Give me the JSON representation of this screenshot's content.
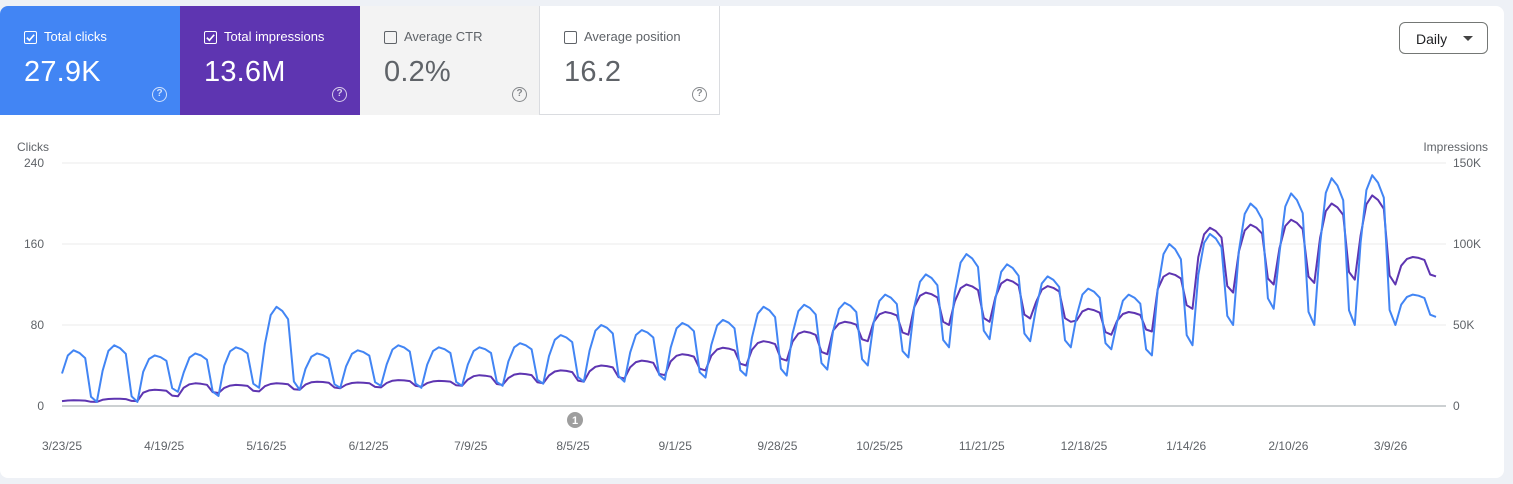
{
  "metrics": [
    {
      "label": "Total clicks",
      "value": "27.9K",
      "checked": true,
      "color": "#4285f4"
    },
    {
      "label": "Total impressions",
      "value": "13.6M",
      "checked": true,
      "color": "#5e35b1"
    },
    {
      "label": "Average CTR",
      "value": "0.2%",
      "checked": false
    },
    {
      "label": "Average position",
      "value": "16.2",
      "checked": false
    }
  ],
  "help_icon": "?",
  "period_dropdown": {
    "selected": "Daily"
  },
  "annotation": {
    "label": "1",
    "date": "8/5/25"
  },
  "chart_data": {
    "type": "line",
    "left_axis": {
      "title": "Clicks",
      "ticks": [
        "0",
        "80",
        "160",
        "240"
      ],
      "min": 0,
      "max": 240
    },
    "right_axis": {
      "title": "Impressions",
      "ticks": [
        "0",
        "50K",
        "100K",
        "150K"
      ],
      "min": 0,
      "max": 150000
    },
    "x_ticks": [
      "3/23/25",
      "4/19/25",
      "5/16/25",
      "6/12/25",
      "7/9/25",
      "8/5/25",
      "9/1/25",
      "9/28/25",
      "10/25/25",
      "11/21/25",
      "12/18/25",
      "1/14/26",
      "2/10/26",
      "3/9/26"
    ],
    "grid": true,
    "series": [
      {
        "name": "Total clicks",
        "axis": "left",
        "color": "#4285f4",
        "approx_weekly_low_high": [
          [
            4,
            55
          ],
          [
            4,
            60
          ],
          [
            14,
            50
          ],
          [
            10,
            52
          ],
          [
            18,
            58
          ],
          [
            16,
            98
          ],
          [
            18,
            52
          ],
          [
            20,
            55
          ],
          [
            18,
            60
          ],
          [
            20,
            58
          ],
          [
            20,
            58
          ],
          [
            22,
            62
          ],
          [
            24,
            70
          ],
          [
            24,
            80
          ],
          [
            26,
            75
          ],
          [
            28,
            82
          ],
          [
            30,
            85
          ],
          [
            30,
            98
          ],
          [
            36,
            100
          ],
          [
            40,
            102
          ],
          [
            48,
            110
          ],
          [
            58,
            130
          ],
          [
            66,
            150
          ],
          [
            64,
            140
          ],
          [
            58,
            128
          ],
          [
            56,
            116
          ],
          [
            50,
            110
          ],
          [
            60,
            160
          ],
          [
            80,
            170
          ],
          [
            96,
            200
          ],
          [
            80,
            210
          ],
          [
            80,
            225
          ],
          [
            80,
            228
          ],
          [
            88,
            110
          ]
        ]
      },
      {
        "name": "Total impressions",
        "axis": "right",
        "color": "#5e35b1",
        "approx_weekly_low_high": [
          [
            2500,
            3500
          ],
          [
            3000,
            4500
          ],
          [
            6000,
            10000
          ],
          [
            8000,
            14000
          ],
          [
            9000,
            13000
          ],
          [
            10000,
            14000
          ],
          [
            11000,
            15000
          ],
          [
            11500,
            14500
          ],
          [
            12000,
            16000
          ],
          [
            12500,
            15500
          ],
          [
            13000,
            19000
          ],
          [
            14000,
            20000
          ],
          [
            15000,
            22000
          ],
          [
            17000,
            25000
          ],
          [
            19000,
            28000
          ],
          [
            22000,
            32000
          ],
          [
            25000,
            36000
          ],
          [
            28000,
            40000
          ],
          [
            32000,
            46000
          ],
          [
            40000,
            52000
          ],
          [
            44000,
            58000
          ],
          [
            50000,
            70000
          ],
          [
            52000,
            75000
          ],
          [
            54000,
            78000
          ],
          [
            52000,
            74000
          ],
          [
            44000,
            60000
          ],
          [
            46000,
            58000
          ],
          [
            60000,
            82000
          ],
          [
            70000,
            110000
          ],
          [
            75000,
            112000
          ],
          [
            76000,
            115000
          ],
          [
            78000,
            125000
          ],
          [
            75000,
            130000
          ],
          [
            80000,
            92000
          ]
        ]
      }
    ]
  }
}
